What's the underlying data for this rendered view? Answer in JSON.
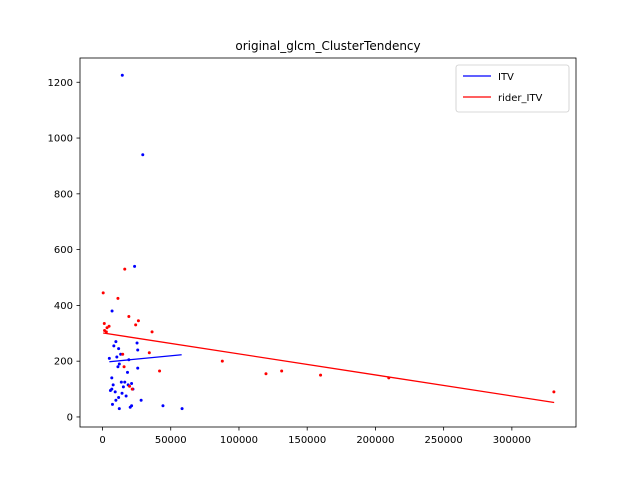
{
  "chart_data": {
    "type": "scatter",
    "title": "original_glcm_ClusterTendency",
    "xlabel": "",
    "ylabel": "",
    "xlim": [
      -16500,
      347000
    ],
    "ylim": [
      -36,
      1287
    ],
    "xticks": [
      0,
      50000,
      100000,
      150000,
      200000,
      250000,
      300000
    ],
    "xtick_labels": [
      "0",
      "50000",
      "100000",
      "150000",
      "200000",
      "250000",
      "300000"
    ],
    "yticks": [
      0,
      200,
      400,
      600,
      800,
      1000,
      1200
    ],
    "ytick_labels": [
      "0",
      "200",
      "400",
      "600",
      "800",
      "1000",
      "1200"
    ],
    "grid": false,
    "legend_position": "top-right",
    "series": [
      {
        "name": "ITV",
        "color": "#0000ff",
        "points": [
          [
            14500,
            1225
          ],
          [
            29500,
            940
          ],
          [
            23500,
            540
          ],
          [
            7000,
            380
          ],
          [
            9800,
            270
          ],
          [
            8300,
            255
          ],
          [
            11800,
            245
          ],
          [
            5000,
            210
          ],
          [
            13300,
            225
          ],
          [
            10500,
            215
          ],
          [
            25300,
            265
          ],
          [
            25800,
            240
          ],
          [
            19300,
            205
          ],
          [
            12300,
            190
          ],
          [
            11300,
            180
          ],
          [
            25800,
            175
          ],
          [
            18300,
            160
          ],
          [
            6800,
            140
          ],
          [
            13800,
            125
          ],
          [
            16300,
            125
          ],
          [
            21300,
            120
          ],
          [
            7800,
            115
          ],
          [
            18800,
            115
          ],
          [
            15300,
            108
          ],
          [
            6800,
            100
          ],
          [
            22300,
            100
          ],
          [
            5800,
            95
          ],
          [
            9300,
            90
          ],
          [
            14300,
            85
          ],
          [
            17300,
            75
          ],
          [
            11800,
            70
          ],
          [
            9800,
            60
          ],
          [
            28300,
            60
          ],
          [
            7300,
            45
          ],
          [
            44300,
            40
          ],
          [
            21300,
            40
          ],
          [
            20300,
            35
          ],
          [
            12300,
            30
          ],
          [
            58300,
            30
          ]
        ],
        "trend": {
          "x": [
            5000,
            58000
          ],
          "y": [
            198,
            223
          ]
        }
      },
      {
        "name": "rider_ITV",
        "color": "#ff0000",
        "points": [
          [
            500,
            445
          ],
          [
            11300,
            425
          ],
          [
            16300,
            530
          ],
          [
            19300,
            360
          ],
          [
            24300,
            330
          ],
          [
            26300,
            345
          ],
          [
            1300,
            335
          ],
          [
            3300,
            320
          ],
          [
            4800,
            325
          ],
          [
            36300,
            305
          ],
          [
            1500,
            310
          ],
          [
            2800,
            305
          ],
          [
            34300,
            230
          ],
          [
            14800,
            225
          ],
          [
            41800,
            165
          ],
          [
            87800,
            200
          ],
          [
            119800,
            155
          ],
          [
            131300,
            165
          ],
          [
            159800,
            150
          ],
          [
            209800,
            140
          ],
          [
            330800,
            90
          ],
          [
            15800,
            180
          ],
          [
            19800,
            110
          ],
          [
            21800,
            100
          ]
        ],
        "trend": {
          "x": [
            500,
            331000
          ],
          "y": [
            301,
            52
          ]
        }
      }
    ]
  }
}
